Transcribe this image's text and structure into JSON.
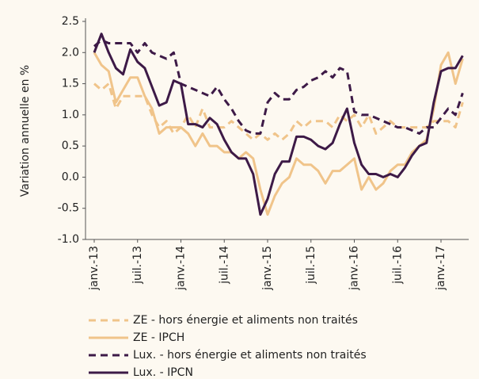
{
  "chart_data": {
    "type": "line",
    "ylabel": "Variation annuelle en %",
    "categories": [
      "janv.-13",
      null,
      null,
      null,
      null,
      null,
      "juil.-13",
      null,
      null,
      null,
      null,
      null,
      "janv.-14",
      null,
      null,
      null,
      null,
      null,
      "juil.-14",
      null,
      null,
      null,
      null,
      null,
      "janv.-15",
      null,
      null,
      null,
      null,
      null,
      "juil.-15",
      null,
      null,
      null,
      null,
      null,
      "janv.-16",
      null,
      null,
      null,
      null,
      null,
      "juil.-16",
      null,
      null,
      null,
      null,
      null,
      "janv.-17",
      null,
      null,
      null
    ],
    "series": [
      {
        "name": "ZE - hors énergie et aliments non traités",
        "color": "#f0c48a",
        "dashed": true,
        "values": [
          1.5,
          1.4,
          1.5,
          1.1,
          1.3,
          1.3,
          1.3,
          1.3,
          1.0,
          0.8,
          0.9,
          0.7,
          0.8,
          1.0,
          0.8,
          1.1,
          0.8,
          0.8,
          0.8,
          0.9,
          0.8,
          0.7,
          0.6,
          0.7,
          0.6,
          0.7,
          0.6,
          0.7,
          0.9,
          0.8,
          0.9,
          0.9,
          0.9,
          0.8,
          1.0,
          0.9,
          1.0,
          0.8,
          1.0,
          0.7,
          0.8,
          0.9,
          0.8,
          0.8,
          0.8,
          0.8,
          0.8,
          0.9,
          0.9,
          0.9,
          0.8,
          1.2
        ]
      },
      {
        "name": "ZE - IPCH",
        "color": "#f0c48a",
        "dashed": false,
        "values": [
          2.0,
          1.8,
          1.7,
          1.2,
          1.4,
          1.6,
          1.6,
          1.3,
          1.1,
          0.7,
          0.8,
          0.8,
          0.8,
          0.7,
          0.5,
          0.7,
          0.5,
          0.5,
          0.4,
          0.4,
          0.3,
          0.4,
          0.3,
          -0.2,
          -0.6,
          -0.3,
          -0.1,
          0.0,
          0.3,
          0.2,
          0.2,
          0.1,
          -0.1,
          0.1,
          0.1,
          0.2,
          0.3,
          -0.2,
          0.0,
          -0.2,
          -0.1,
          0.1,
          0.2,
          0.2,
          0.4,
          0.5,
          0.6,
          1.1,
          1.8,
          2.0,
          1.5,
          1.9
        ]
      },
      {
        "name": "Lux. - hors énergie et aliments non traités",
        "color": "#3d1a47",
        "dashed": true,
        "values": [
          2.1,
          2.2,
          2.15,
          2.15,
          2.15,
          2.15,
          2.0,
          2.15,
          2.0,
          1.95,
          1.9,
          2.0,
          1.5,
          1.45,
          1.4,
          1.35,
          1.3,
          1.45,
          1.25,
          1.1,
          0.9,
          0.75,
          0.7,
          0.7,
          1.2,
          1.35,
          1.25,
          1.25,
          1.4,
          1.45,
          1.55,
          1.6,
          1.7,
          1.6,
          1.75,
          1.7,
          1.05,
          1.0,
          1.0,
          0.95,
          0.9,
          0.85,
          0.8,
          0.8,
          0.75,
          0.7,
          0.8,
          0.8,
          0.95,
          1.1,
          1.0,
          1.35
        ]
      },
      {
        "name": "Lux. - IPCN",
        "color": "#3d1a47",
        "dashed": false,
        "values": [
          2.0,
          2.3,
          2.0,
          1.75,
          1.65,
          2.05,
          1.85,
          1.75,
          1.45,
          1.15,
          1.2,
          1.55,
          1.5,
          0.85,
          0.85,
          0.8,
          0.95,
          0.85,
          0.6,
          0.4,
          0.3,
          0.3,
          0.05,
          -0.6,
          -0.35,
          0.05,
          0.25,
          0.25,
          0.65,
          0.65,
          0.6,
          0.5,
          0.45,
          0.55,
          0.85,
          1.1,
          0.55,
          0.2,
          0.05,
          0.05,
          0.0,
          0.05,
          0.0,
          0.15,
          0.35,
          0.5,
          0.55,
          1.2,
          1.7,
          1.75,
          1.75,
          1.95
        ]
      }
    ],
    "ylim": [
      -1.0,
      2.5
    ],
    "yticks": [
      2.5,
      {
        "value": 2.0,
        "label": "2.0"
      },
      1.5,
      {
        "value": 1.0,
        "label": "1.0"
      },
      0.5,
      {
        "value": 0.0,
        "label": "0.0"
      },
      -0.5,
      {
        "value": -1.0,
        "label": "-1.0"
      }
    ],
    "grid": false,
    "legend": "bottom"
  }
}
